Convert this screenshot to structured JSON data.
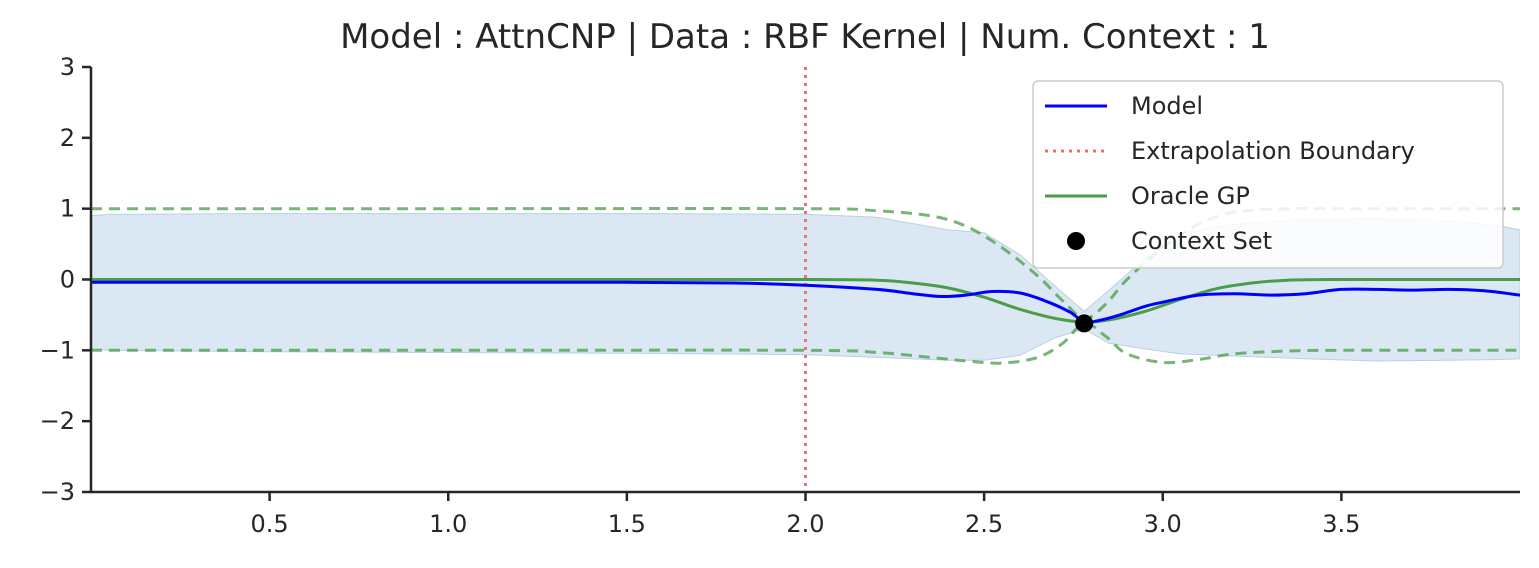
{
  "chart_data": {
    "type": "line",
    "title": "Model : AttnCNP | Data : RBF Kernel | Num. Context : 1",
    "xlabel": "",
    "ylabel": "",
    "xlim": [
      0.0,
      4.0
    ],
    "ylim": [
      -3,
      3
    ],
    "xticks": [
      0.5,
      1.0,
      1.5,
      2.0,
      2.5,
      3.0,
      3.5
    ],
    "xtick_labels": [
      "0.5",
      "1.0",
      "1.5",
      "2.0",
      "2.5",
      "3.0",
      "3.5"
    ],
    "yticks": [
      3,
      2,
      1,
      0,
      -1,
      -2,
      -3
    ],
    "ytick_labels": [
      "3",
      "2",
      "1",
      "0",
      "−1",
      "−2",
      "−3"
    ],
    "grid": false,
    "legend_position": "top-right",
    "extrapolation_boundary_x": 2.0,
    "colors": {
      "model": "#0000ff",
      "model_band": "#b8d0e8",
      "boundary": "#f07070",
      "oracle": "#4a9e4a",
      "context": "#000000",
      "axis": "#262626"
    },
    "legend": [
      {
        "key": "model",
        "label": "Model",
        "style": "line"
      },
      {
        "key": "boundary",
        "label": "Extrapolation Boundary",
        "style": "dotted"
      },
      {
        "key": "oracle",
        "label": "Oracle GP",
        "style": "line"
      },
      {
        "key": "context",
        "label": "Context Set",
        "style": "marker"
      }
    ],
    "model_mean": {
      "x": [
        0.0,
        0.5,
        1.0,
        1.5,
        1.8,
        2.0,
        2.2,
        2.3,
        2.38,
        2.45,
        2.52,
        2.6,
        2.67,
        2.74,
        2.78,
        2.82,
        2.88,
        2.95,
        3.0,
        3.1,
        3.2,
        3.3,
        3.4,
        3.5,
        3.6,
        3.7,
        3.8,
        3.9,
        4.0
      ],
      "y": [
        -0.04,
        -0.04,
        -0.04,
        -0.04,
        -0.05,
        -0.08,
        -0.14,
        -0.2,
        -0.24,
        -0.22,
        -0.17,
        -0.19,
        -0.3,
        -0.46,
        -0.6,
        -0.58,
        -0.5,
        -0.38,
        -0.32,
        -0.22,
        -0.2,
        -0.22,
        -0.2,
        -0.14,
        -0.14,
        -0.15,
        -0.14,
        -0.16,
        -0.22
      ]
    },
    "model_band": {
      "x": [
        0.0,
        0.05,
        0.5,
        1.0,
        1.5,
        2.0,
        2.2,
        2.4,
        2.5,
        2.6,
        2.7,
        2.78,
        2.85,
        2.95,
        3.05,
        3.2,
        3.4,
        3.6,
        3.8,
        3.95,
        4.0
      ],
      "upper": [
        0.9,
        0.92,
        0.93,
        0.93,
        0.93,
        0.92,
        0.88,
        0.7,
        0.66,
        0.35,
        -0.1,
        -0.45,
        -0.15,
        0.3,
        0.65,
        0.78,
        0.85,
        0.86,
        0.83,
        0.75,
        0.7
      ],
      "lower": [
        -0.98,
        -1.0,
        -1.02,
        -1.03,
        -1.04,
        -1.06,
        -1.1,
        -1.14,
        -1.14,
        -1.07,
        -0.82,
        -0.7,
        -0.9,
        -0.98,
        -1.05,
        -1.08,
        -1.12,
        -1.15,
        -1.14,
        -1.13,
        -1.12
      ]
    },
    "oracle_mean": {
      "x": [
        0.0,
        0.5,
        1.0,
        1.5,
        2.0,
        2.2,
        2.3,
        2.4,
        2.5,
        2.6,
        2.7,
        2.78,
        2.85,
        2.95,
        3.05,
        3.15,
        3.25,
        3.35,
        3.5,
        3.7,
        4.0
      ],
      "y": [
        0.0,
        0.0,
        0.0,
        0.0,
        0.0,
        -0.01,
        -0.05,
        -0.12,
        -0.25,
        -0.42,
        -0.55,
        -0.6,
        -0.57,
        -0.45,
        -0.28,
        -0.13,
        -0.05,
        -0.01,
        0.0,
        0.0,
        0.0
      ]
    },
    "oracle_upper": {
      "x": [
        0.0,
        1.0,
        2.0,
        2.2,
        2.35,
        2.45,
        2.55,
        2.65,
        2.72,
        2.78,
        2.84,
        2.9,
        3.0,
        3.1,
        3.2,
        3.35,
        3.5,
        4.0
      ],
      "y": [
        1.0,
        1.0,
        1.0,
        0.97,
        0.9,
        0.75,
        0.45,
        0.05,
        -0.3,
        -0.55,
        -0.35,
        0.0,
        0.45,
        0.78,
        0.95,
        1.0,
        1.0,
        1.0
      ]
    },
    "oracle_lower": {
      "x": [
        0.0,
        1.0,
        2.0,
        2.2,
        2.35,
        2.45,
        2.55,
        2.65,
        2.72,
        2.78,
        2.84,
        2.9,
        3.0,
        3.1,
        3.2,
        3.35,
        3.5,
        4.0
      ],
      "y": [
        -1.0,
        -1.0,
        -1.0,
        -1.03,
        -1.1,
        -1.15,
        -1.18,
        -1.1,
        -0.9,
        -0.62,
        -0.8,
        -1.05,
        -1.17,
        -1.13,
        -1.05,
        -1.01,
        -1.0,
        -1.0
      ]
    },
    "context_points": [
      {
        "x": 2.78,
        "y": -0.62
      }
    ]
  }
}
